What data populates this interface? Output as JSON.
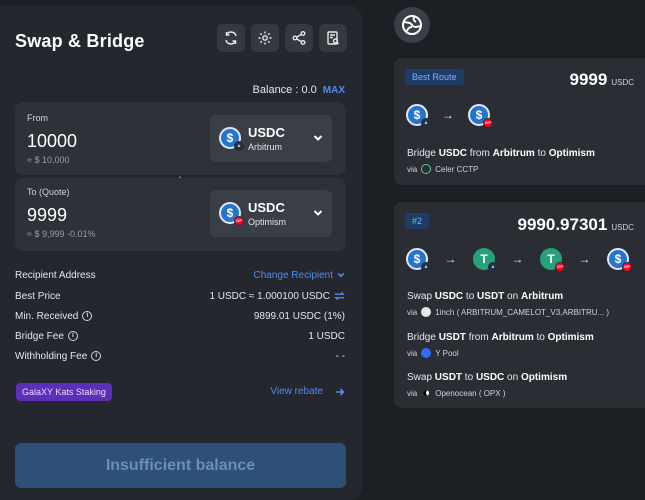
{
  "header": {
    "title": "Swap & Bridge"
  },
  "toolbar": {
    "icons": [
      "refresh-icon",
      "gear-icon",
      "share-icon",
      "history-icon"
    ]
  },
  "balance": {
    "label": "Balance : 0.0",
    "max_label": "MAX"
  },
  "from": {
    "label": "From",
    "amount": "10000",
    "usd": "≈ $ 10,000",
    "token": "USDC",
    "chain": "Arbitrum"
  },
  "to": {
    "label": "To (Quote)",
    "amount": "9999",
    "usd": "≈ $ 9,999 -0.01%",
    "token": "USDC",
    "chain": "Optimism"
  },
  "details": {
    "recipient_label": "Recipient Address",
    "change_recipient": "Change Recipient",
    "best_price_label": "Best Price",
    "best_price_value": "1 USDC ≈ 1.000100 USDC",
    "min_received_label": "Min. Received",
    "min_received_value": "9899.01 USDC (1%)",
    "bridge_fee_label": "Bridge Fee",
    "bridge_fee_value": "1 USDC",
    "withholding_fee_label": "Withholding Fee",
    "withholding_fee_value": "- -"
  },
  "staking_badge": "GalaXY Kats Staking",
  "rebate_link": "View rebate",
  "submit_label": "Insufficient balance",
  "routes": [
    {
      "badge": "Best Route",
      "amount": "9999",
      "unit": "USDC",
      "steps": [
        {
          "prefix": "Bridge ",
          "token": "USDC",
          "mid": " from ",
          "from": "Arbitrum",
          "mid2": " to ",
          "to": "Optimism",
          "via": "via",
          "provider": "Celer CCTP"
        }
      ]
    },
    {
      "badge": "#2",
      "amount": "9990.97301",
      "unit": "USDC",
      "steps": [
        {
          "prefix": "Swap ",
          "token": "USDC",
          "mid": " to ",
          "from": "USDT",
          "mid2": " on ",
          "to": "Arbitrum",
          "via": "via",
          "provider": "1inch ( ARBITRUM_CAMELOT_V3,ARBITRU... )"
        },
        {
          "prefix": "Bridge ",
          "token": "USDT",
          "mid": " from ",
          "from": "Arbitrum",
          "mid2": " to ",
          "to": "Optimism",
          "via": "via",
          "provider": "Y Pool"
        },
        {
          "prefix": "Swap ",
          "token": "USDT",
          "mid": " to ",
          "from": "USDC",
          "mid2": " on ",
          "to": "Optimism",
          "via": "via",
          "provider": "Openocean ( OPX )"
        }
      ]
    }
  ],
  "colors": {
    "accent": "#4f8bf5",
    "panel": "#24272d",
    "usdc": "#2775ca",
    "usdt": "#26a17b",
    "optimism": "#ff0420"
  }
}
